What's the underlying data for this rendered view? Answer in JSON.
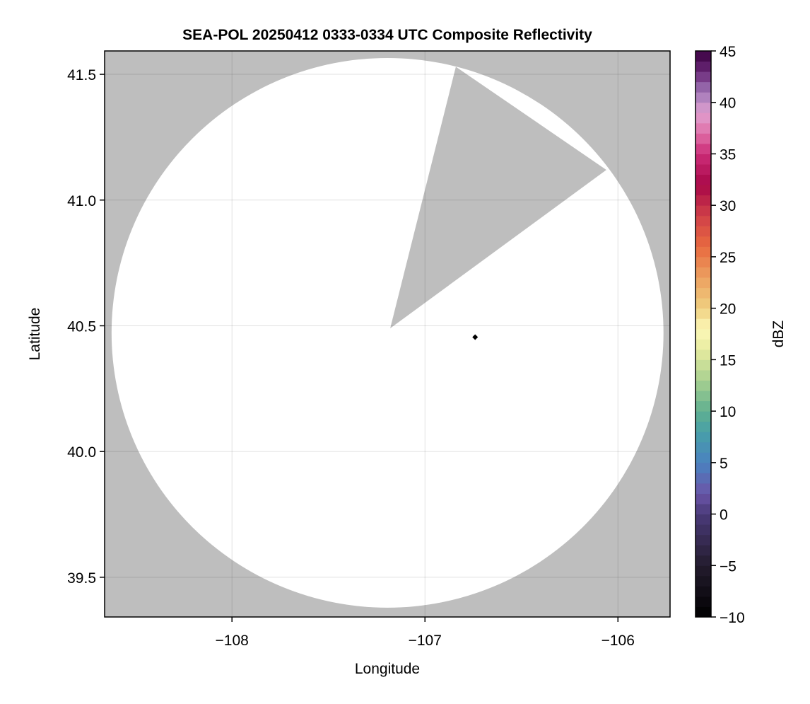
{
  "chart_data": {
    "type": "heatmap",
    "title": "SEA-POL 20250412 0333-0334 UTC Composite Reflectivity",
    "xlabel": "Longitude",
    "ylabel": "Latitude",
    "xlim": [
      -108.66,
      -105.73
    ],
    "ylim": [
      39.342,
      41.593
    ],
    "xticks": [
      -108,
      -107,
      -106
    ],
    "xtick_labels": [
      "−108",
      "−107",
      "−106"
    ],
    "yticks": [
      39.5,
      40.0,
      40.5,
      41.0,
      41.5
    ],
    "ytick_labels": [
      "39.5",
      "40.0",
      "40.5",
      "41.0",
      "41.5"
    ],
    "grid": true,
    "missing_color": "#bebebe",
    "no_echo_color": "#ffffff",
    "coverage": {
      "center_lon": -107.194,
      "center_lat": 40.472,
      "radius_lon_deg": 1.43,
      "radius_lat_deg": 1.093
    },
    "blocked_sector": [
      [
        -107.18,
        40.49
      ],
      [
        -106.84,
        41.53
      ],
      [
        -106.06,
        41.12
      ]
    ],
    "marker": {
      "lon": -106.74,
      "lat": 40.455,
      "shape": "diamond",
      "color": "#000000"
    },
    "colorbar": {
      "label": "dBZ",
      "range": [
        -10,
        45
      ],
      "step": 1,
      "ticks": [
        -10,
        -5,
        0,
        5,
        10,
        15,
        20,
        25,
        30,
        35,
        40,
        45
      ],
      "tick_labels": [
        "−10",
        "−5",
        "0",
        "5",
        "10",
        "15",
        "20",
        "25",
        "30",
        "35",
        "40",
        "45"
      ],
      "anchors": [
        [
          -10,
          "#000000"
        ],
        [
          -5,
          "#231c2e"
        ],
        [
          0,
          "#4a3a78"
        ],
        [
          2,
          "#6a55a8"
        ],
        [
          5,
          "#4a82c0"
        ],
        [
          8,
          "#48a0a8"
        ],
        [
          10,
          "#60b090"
        ],
        [
          13,
          "#a8d090"
        ],
        [
          16,
          "#e8eca0"
        ],
        [
          18,
          "#fcf8b8"
        ],
        [
          20,
          "#f0d080"
        ],
        [
          23,
          "#eca060"
        ],
        [
          26,
          "#e86a40"
        ],
        [
          29,
          "#d04048"
        ],
        [
          32,
          "#a80848"
        ],
        [
          35,
          "#cc2c78"
        ],
        [
          37,
          "#e070a8"
        ],
        [
          39,
          "#e0a0d0"
        ],
        [
          41,
          "#a078b8"
        ],
        [
          43,
          "#6a2878"
        ],
        [
          45,
          "#3a0040"
        ]
      ]
    }
  }
}
